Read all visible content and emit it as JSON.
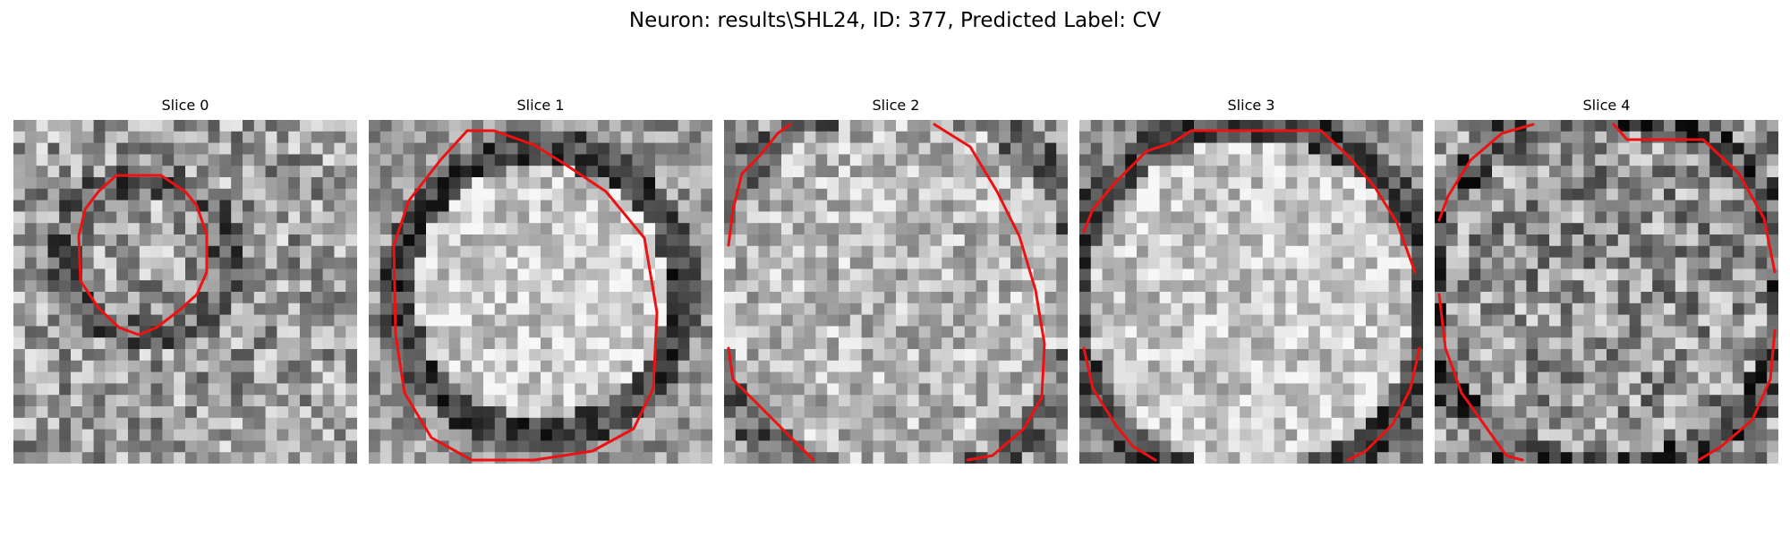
{
  "title": "Neuron: results\\SHL24, ID: 377, Predicted Label: CV",
  "panels": [
    {
      "title": "Slice 0",
      "contour_color": "#ee1111"
    },
    {
      "title": "Slice 1",
      "contour_color": "#ee1111"
    },
    {
      "title": "Slice 2",
      "contour_color": "#ee1111"
    },
    {
      "title": "Slice 3",
      "contour_color": "#ee1111"
    },
    {
      "title": "Slice 4",
      "contour_color": "#ee1111"
    }
  ],
  "colormap": "grayscale"
}
